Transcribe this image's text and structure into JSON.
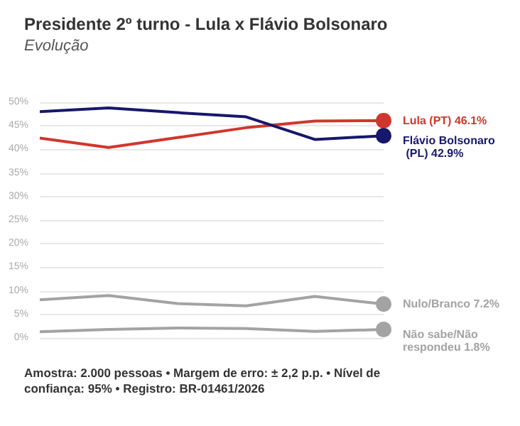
{
  "chart_data": {
    "type": "line",
    "title": "Presidente 2º turno - Lula x Flávio Bolsonaro",
    "subtitle": "Evolução",
    "categories": [
      null,
      null,
      null,
      null,
      null,
      null
    ],
    "series": [
      {
        "name": "Lula (PT)",
        "color": "#d0362d",
        "values": [
          42.4,
          40.4,
          42.5,
          44.6,
          46.0,
          46.1
        ],
        "value_labels": [
          null,
          null,
          null,
          null,
          null,
          "46.1%"
        ]
      },
      {
        "name": "Flávio Bolsonaro (PL)",
        "color": "#17176b",
        "values": [
          48.0,
          48.8,
          47.8,
          46.9,
          42.1,
          42.9
        ],
        "value_labels": [
          null,
          null,
          null,
          null,
          null,
          "42.9%"
        ]
      },
      {
        "name": "Nulo/Branco",
        "color": "#a3a3a3",
        "values": [
          8.1,
          9.0,
          7.3,
          6.8,
          8.8,
          7.2
        ],
        "value_labels": [
          null,
          null,
          null,
          null,
          null,
          "7.2%"
        ]
      },
      {
        "name": "Não sabe/Não respondeu",
        "color": "#a3a3a3",
        "values": [
          1.3,
          1.8,
          2.1,
          2.0,
          1.4,
          1.8
        ],
        "value_labels": [
          null,
          null,
          null,
          null,
          null,
          "1.8%"
        ]
      }
    ],
    "ylim": [
      0,
      50
    ],
    "yticks": [
      {
        "value": 0,
        "label": "0%"
      },
      {
        "value": 5,
        "label": "5%"
      },
      {
        "value": 10,
        "label": "10%"
      },
      {
        "value": 15,
        "label": "15%"
      },
      {
        "value": 20,
        "label": "20%"
      },
      {
        "value": 25,
        "label": "25%"
      },
      {
        "value": 30,
        "label": "30%"
      },
      {
        "value": 35,
        "label": "35%"
      },
      {
        "value": 40,
        "label": "40%"
      },
      {
        "value": 45,
        "label": "45%"
      },
      {
        "value": 50,
        "label": "50%"
      }
    ],
    "grid": "y",
    "legend": false,
    "annotations": [
      "Amostra: 2.000 pessoas • Margem de erro: ± 2,2 p.p. • Nível de confiança: 95% • Registro: BR-01461/2026"
    ]
  }
}
